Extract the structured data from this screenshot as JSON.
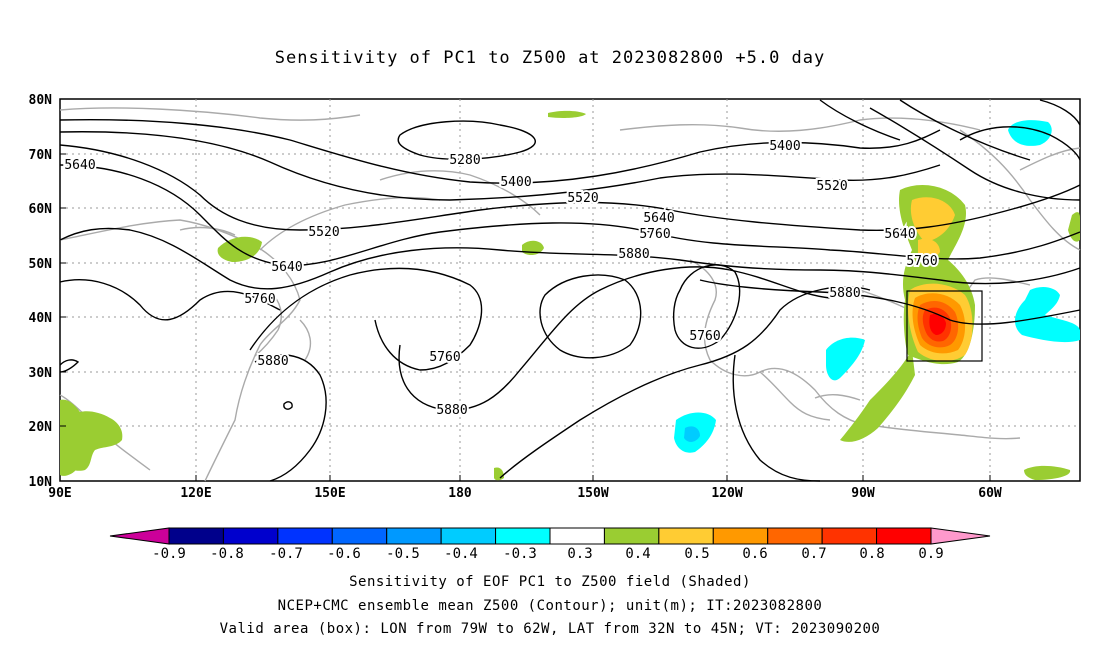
{
  "title": "Sensitivity of PC1 to Z500 at 2023082800 +5.0 day",
  "map": {
    "lat_ticks": [
      "80N",
      "70N",
      "60N",
      "50N",
      "40N",
      "30N",
      "20N",
      "10N"
    ],
    "lon_ticks": [
      "90E",
      "120E",
      "150E",
      "180",
      "150W",
      "120W",
      "90W",
      "60W"
    ],
    "contour_labels": [
      "5280",
      "5400",
      "5400",
      "5520",
      "5520",
      "5520",
      "5640",
      "5640",
      "5640",
      "5640",
      "5760",
      "5760",
      "5760",
      "5760",
      "5760",
      "5880",
      "5880",
      "5880",
      "5880"
    ],
    "valid_box": {
      "lon_west": -79,
      "lon_east": -62,
      "lat_south": 32,
      "lat_north": 45
    }
  },
  "colorbar": {
    "labels": [
      "-0.9",
      "-0.8",
      "-0.7",
      "-0.6",
      "-0.5",
      "-0.4",
      "-0.3",
      "0.3",
      "0.4",
      "0.5",
      "0.6",
      "0.7",
      "0.8",
      "0.9"
    ],
    "colors": [
      "#00008b",
      "#0000cd",
      "#0033ff",
      "#0066ff",
      "#0099ff",
      "#00ccff",
      "#00ffff",
      "#ffffff",
      "#9acd32",
      "#ffcc33",
      "#ff9900",
      "#ff6600",
      "#ff3300",
      "#ff0000"
    ],
    "low_end_color": "#cc0099",
    "high_end_color": "#ff99cc"
  },
  "captions": [
    "Sensitivity of EOF PC1 to Z500 field (Shaded)",
    "NCEP+CMC ensemble mean Z500 (Contour); unit(m); IT:2023082800",
    "Valid area (box): LON from 79W to 62W, LAT from 32N to 45N; VT: 2023090200"
  ]
}
